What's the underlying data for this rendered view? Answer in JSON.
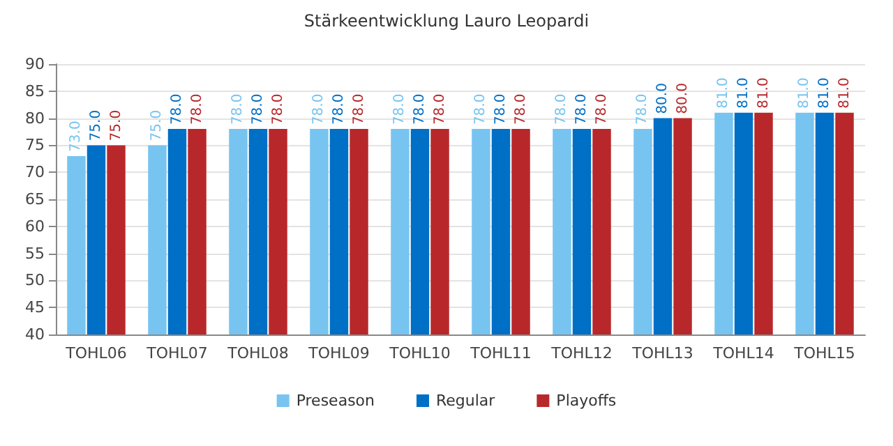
{
  "chart_data": {
    "type": "bar",
    "title": "Stärkeentwicklung Lauro Leopardi",
    "categories": [
      "TOHL06",
      "TOHL07",
      "TOHL08",
      "TOHL09",
      "TOHL10",
      "TOHL11",
      "TOHL12",
      "TOHL13",
      "TOHL14",
      "TOHL15"
    ],
    "series": [
      {
        "name": "Preseason",
        "color": "#77c4f0",
        "values": [
          73,
          75,
          78,
          78,
          78,
          78,
          78,
          78,
          81,
          81
        ],
        "value_labels": [
          "73.0",
          "75.0",
          "78.0",
          "78.0",
          "78.0",
          "78.0",
          "78.0",
          "78.0",
          "81.0",
          "81.0"
        ]
      },
      {
        "name": "Regular",
        "color": "#006fc6",
        "values": [
          75,
          78,
          78,
          78,
          78,
          78,
          78,
          80,
          81,
          81
        ],
        "value_labels": [
          "75.0",
          "78.0",
          "78.0",
          "78.0",
          "78.0",
          "78.0",
          "78.0",
          "80.0",
          "81.0",
          "81.0"
        ]
      },
      {
        "name": "Playoffs",
        "color": "#b8282b",
        "values": [
          75,
          78,
          78,
          78,
          78,
          78,
          78,
          80,
          81,
          81
        ],
        "value_labels": [
          "75.0",
          "78.0",
          "78.0",
          "78.0",
          "78.0",
          "78.0",
          "78.0",
          "80.0",
          "81.0",
          "81.0"
        ]
      }
    ],
    "ylim": [
      40,
      90
    ],
    "yticks": [
      40,
      45,
      50,
      55,
      60,
      65,
      70,
      75,
      80,
      85,
      90
    ],
    "grid": "y",
    "legend": "bottom"
  }
}
